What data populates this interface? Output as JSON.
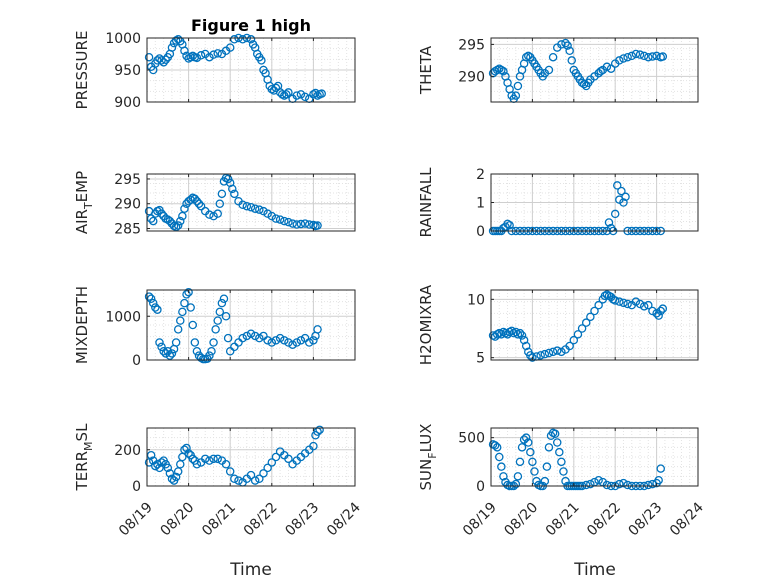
{
  "figure": {
    "title": "Figure 1 high",
    "xlabel": "Time"
  },
  "colors": {
    "marker": "#0072BD",
    "axis": "#262626",
    "grid": "#cfcfcf"
  },
  "chart_data": [
    {
      "type": "scatter",
      "ylabel": "PRESSURE",
      "ylabel_sub": "",
      "ylabel_after": "",
      "ylim": [
        900,
        1000
      ],
      "yticks": [
        900,
        950,
        1000
      ],
      "xlim": [
        0,
        5
      ],
      "x": [
        0.05,
        0.1,
        0.15,
        0.2,
        0.25,
        0.3,
        0.35,
        0.4,
        0.45,
        0.5,
        0.55,
        0.6,
        0.65,
        0.7,
        0.75,
        0.8,
        0.85,
        0.9,
        0.95,
        1.0,
        1.05,
        1.1,
        1.15,
        1.2,
        1.3,
        1.4,
        1.5,
        1.6,
        1.7,
        1.8,
        1.9,
        2.0,
        2.1,
        2.2,
        2.3,
        2.4,
        2.5,
        2.55,
        2.6,
        2.65,
        2.7,
        2.75,
        2.8,
        2.85,
        2.9,
        2.95,
        3.0,
        3.05,
        3.1,
        3.15,
        3.2,
        3.25,
        3.3,
        3.35,
        3.4,
        3.5,
        3.6,
        3.7,
        3.8,
        3.9,
        4.0,
        4.05,
        4.1,
        4.15,
        4.2
      ],
      "y": [
        970,
        955,
        950,
        960,
        965,
        968,
        965,
        962,
        966,
        970,
        975,
        985,
        992,
        996,
        998,
        995,
        990,
        980,
        972,
        968,
        970,
        972,
        970,
        969,
        973,
        975,
        970,
        974,
        976,
        975,
        980,
        985,
        998,
        1000,
        998,
        1000,
        998,
        990,
        985,
        975,
        970,
        965,
        950,
        945,
        935,
        925,
        920,
        918,
        922,
        925,
        915,
        912,
        910,
        912,
        915,
        905,
        910,
        912,
        908,
        905,
        912,
        914,
        910,
        912,
        913
      ],
      "grid": true
    },
    {
      "type": "scatter",
      "ylabel": "THETA",
      "ylabel_sub": "",
      "ylabel_after": "",
      "ylim": [
        286,
        296
      ],
      "yticks": [
        290,
        295
      ],
      "xlim": [
        0,
        5
      ],
      "x": [
        0.05,
        0.1,
        0.15,
        0.2,
        0.25,
        0.3,
        0.35,
        0.4,
        0.45,
        0.5,
        0.55,
        0.6,
        0.65,
        0.7,
        0.75,
        0.8,
        0.85,
        0.9,
        0.95,
        1.0,
        1.05,
        1.1,
        1.15,
        1.2,
        1.25,
        1.3,
        1.4,
        1.5,
        1.6,
        1.7,
        1.8,
        1.85,
        1.9,
        1.95,
        2.0,
        2.05,
        2.1,
        2.15,
        2.2,
        2.25,
        2.3,
        2.35,
        2.4,
        2.5,
        2.6,
        2.65,
        2.7,
        2.8,
        2.9,
        3.0,
        3.1,
        3.2,
        3.3,
        3.4,
        3.5,
        3.6,
        3.7,
        3.8,
        3.9,
        4.0,
        4.1,
        4.15
      ],
      "y": [
        290.5,
        290.8,
        291,
        291.2,
        291,
        290.8,
        290,
        289,
        288,
        287,
        286.5,
        287,
        288.5,
        290,
        291,
        292,
        293,
        293.2,
        293,
        292.5,
        292,
        291.5,
        291,
        290.5,
        290,
        290.5,
        291,
        293,
        294.5,
        295,
        295.2,
        294.8,
        294,
        292.5,
        291,
        290.5,
        290,
        289.5,
        289,
        288.8,
        288.5,
        289,
        289.5,
        290,
        290.5,
        290.8,
        291,
        291.5,
        291.2,
        292,
        292.5,
        292.8,
        293,
        293.2,
        293.5,
        293.4,
        293.2,
        293,
        293.1,
        293.2,
        293,
        293.1
      ],
      "grid": true
    },
    {
      "type": "scatter",
      "ylabel": "AIR",
      "ylabel_sub": "T",
      "ylabel_after": "EMP",
      "ylim": [
        284.5,
        296
      ],
      "yticks": [
        285,
        290,
        295
      ],
      "xlim": [
        0,
        5
      ],
      "x": [
        0.05,
        0.1,
        0.15,
        0.2,
        0.25,
        0.3,
        0.35,
        0.4,
        0.45,
        0.5,
        0.55,
        0.6,
        0.65,
        0.7,
        0.75,
        0.8,
        0.85,
        0.9,
        0.95,
        1.0,
        1.05,
        1.1,
        1.15,
        1.2,
        1.25,
        1.3,
        1.4,
        1.5,
        1.6,
        1.7,
        1.75,
        1.8,
        1.85,
        1.9,
        1.95,
        2.0,
        2.05,
        2.1,
        2.2,
        2.3,
        2.4,
        2.5,
        2.6,
        2.7,
        2.8,
        2.9,
        3.0,
        3.1,
        3.2,
        3.3,
        3.4,
        3.5,
        3.6,
        3.7,
        3.8,
        3.9,
        4.0,
        4.05,
        4.1
      ],
      "y": [
        288.5,
        287,
        286.5,
        288,
        288.5,
        288.7,
        288,
        287.5,
        287,
        286.8,
        286.5,
        286,
        285.5,
        285.3,
        285.6,
        286.5,
        287.5,
        289,
        290,
        290.5,
        290.8,
        291.2,
        291,
        290.5,
        290,
        289.5,
        288.5,
        287.8,
        287.5,
        288,
        290,
        292,
        294.5,
        295.2,
        295,
        294.2,
        293,
        292,
        290.5,
        289.8,
        289.5,
        289.3,
        289,
        288.8,
        288.5,
        288,
        287.5,
        287,
        286.8,
        286.5,
        286.3,
        286,
        285.8,
        285.9,
        286,
        285.8,
        285.7,
        285.5,
        285.6
      ],
      "grid": true
    },
    {
      "type": "scatter",
      "ylabel": "RAINFALL",
      "ylabel_sub": "",
      "ylabel_after": "",
      "ylim": [
        0,
        2
      ],
      "yticks": [
        0,
        1,
        2
      ],
      "xlim": [
        0,
        5
      ],
      "x": [
        0.05,
        0.1,
        0.15,
        0.2,
        0.25,
        0.3,
        0.35,
        0.4,
        0.45,
        0.5,
        0.6,
        0.7,
        0.8,
        0.9,
        1.0,
        1.1,
        1.2,
        1.3,
        1.4,
        1.5,
        1.6,
        1.7,
        1.8,
        1.9,
        2.0,
        2.1,
        2.2,
        2.3,
        2.4,
        2.5,
        2.6,
        2.7,
        2.8,
        2.85,
        2.9,
        2.95,
        3.0,
        3.05,
        3.1,
        3.15,
        3.2,
        3.25,
        3.3,
        3.4,
        3.5,
        3.6,
        3.7,
        3.8,
        3.9,
        4.0,
        4.1
      ],
      "y": [
        0,
        0,
        0,
        0,
        0,
        0.1,
        0.15,
        0.25,
        0.2,
        0,
        0,
        0,
        0,
        0,
        0,
        0,
        0,
        0,
        0,
        0,
        0,
        0,
        0,
        0,
        0,
        0,
        0,
        0,
        0,
        0,
        0,
        0,
        0,
        0.3,
        0.1,
        0,
        0.6,
        1.6,
        1.1,
        1.4,
        1.0,
        1.2,
        0,
        0,
        0,
        0,
        0,
        0,
        0,
        0,
        0
      ],
      "grid": true
    },
    {
      "type": "scatter",
      "ylabel": "MIXDEPTH",
      "ylabel_sub": "",
      "ylabel_after": "",
      "ylim": [
        0,
        1600
      ],
      "yticks": [
        0,
        1000
      ],
      "xlim": [
        0,
        5
      ],
      "x": [
        0.05,
        0.1,
        0.15,
        0.2,
        0.25,
        0.3,
        0.35,
        0.4,
        0.45,
        0.5,
        0.55,
        0.6,
        0.65,
        0.7,
        0.75,
        0.8,
        0.85,
        0.9,
        0.95,
        1.0,
        1.05,
        1.1,
        1.15,
        1.2,
        1.25,
        1.3,
        1.35,
        1.4,
        1.45,
        1.5,
        1.55,
        1.6,
        1.65,
        1.7,
        1.75,
        1.8,
        1.85,
        1.9,
        1.95,
        2.0,
        2.1,
        2.2,
        2.3,
        2.4,
        2.5,
        2.6,
        2.7,
        2.8,
        2.9,
        3.0,
        3.1,
        3.2,
        3.3,
        3.4,
        3.5,
        3.6,
        3.7,
        3.8,
        3.9,
        4.0,
        4.05,
        4.1
      ],
      "y": [
        1450,
        1400,
        1300,
        1200,
        1150,
        400,
        300,
        200,
        150,
        200,
        100,
        150,
        250,
        400,
        700,
        900,
        1100,
        1300,
        1500,
        1550,
        1200,
        800,
        400,
        200,
        100,
        50,
        20,
        20,
        30,
        100,
        200,
        400,
        700,
        900,
        1100,
        1300,
        1400,
        1000,
        500,
        200,
        300,
        400,
        500,
        550,
        600,
        550,
        500,
        550,
        450,
        400,
        450,
        500,
        450,
        400,
        350,
        400,
        450,
        500,
        400,
        450,
        550,
        700
      ],
      "grid": true
    },
    {
      "type": "scatter",
      "ylabel": "H2OMIXRA",
      "ylabel_sub": "",
      "ylabel_after": "",
      "ylim": [
        4.8,
        10.8
      ],
      "yticks": [
        5,
        10
      ],
      "xlim": [
        0,
        5
      ],
      "x": [
        0.05,
        0.1,
        0.15,
        0.2,
        0.25,
        0.3,
        0.35,
        0.4,
        0.45,
        0.5,
        0.55,
        0.6,
        0.65,
        0.7,
        0.75,
        0.8,
        0.85,
        0.9,
        0.95,
        1.0,
        1.1,
        1.2,
        1.3,
        1.4,
        1.5,
        1.6,
        1.7,
        1.8,
        1.9,
        2.0,
        2.1,
        2.2,
        2.3,
        2.4,
        2.5,
        2.6,
        2.7,
        2.75,
        2.8,
        2.85,
        2.9,
        2.95,
        3.0,
        3.1,
        3.2,
        3.3,
        3.4,
        3.5,
        3.6,
        3.7,
        3.8,
        3.9,
        4.0,
        4.05,
        4.1,
        4.15
      ],
      "y": [
        6.9,
        6.8,
        7.0,
        7.1,
        7.0,
        7.2,
        7.1,
        7.0,
        7.2,
        7.3,
        7.1,
        7.2,
        7.0,
        7.1,
        6.9,
        6.5,
        6.0,
        5.5,
        5.2,
        5.0,
        5.1,
        5.2,
        5.3,
        5.4,
        5.5,
        5.6,
        5.5,
        5.7,
        6.0,
        6.5,
        7.0,
        7.5,
        8.0,
        8.5,
        9.0,
        9.5,
        10.0,
        10.3,
        10.4,
        10.3,
        10.2,
        10.0,
        9.9,
        9.8,
        9.7,
        9.6,
        9.5,
        9.8,
        9.6,
        9.4,
        9.5,
        9.0,
        8.8,
        8.6,
        9.0,
        9.2
      ],
      "grid": true
    },
    {
      "type": "scatter",
      "ylabel": "TERR",
      "ylabel_sub": "M",
      "ylabel_after": "SL",
      "ylim": [
        0,
        320
      ],
      "yticks": [
        0,
        200
      ],
      "xlim": [
        0,
        5
      ],
      "x": [
        0.05,
        0.1,
        0.15,
        0.2,
        0.25,
        0.3,
        0.35,
        0.4,
        0.45,
        0.5,
        0.55,
        0.6,
        0.65,
        0.7,
        0.75,
        0.8,
        0.85,
        0.9,
        0.95,
        1.0,
        1.05,
        1.1,
        1.15,
        1.2,
        1.3,
        1.4,
        1.5,
        1.6,
        1.7,
        1.8,
        1.9,
        2.0,
        2.1,
        2.2,
        2.3,
        2.4,
        2.5,
        2.6,
        2.7,
        2.8,
        2.9,
        3.0,
        3.1,
        3.2,
        3.3,
        3.4,
        3.5,
        3.6,
        3.7,
        3.8,
        3.9,
        4.0,
        4.05,
        4.1,
        4.15
      ],
      "y": [
        130,
        170,
        140,
        110,
        120,
        100,
        130,
        140,
        120,
        100,
        70,
        40,
        30,
        50,
        80,
        120,
        160,
        200,
        210,
        180,
        170,
        150,
        140,
        120,
        130,
        150,
        140,
        150,
        150,
        140,
        120,
        80,
        40,
        30,
        20,
        40,
        60,
        30,
        40,
        70,
        100,
        130,
        160,
        190,
        170,
        150,
        120,
        140,
        160,
        180,
        200,
        220,
        280,
        300,
        310
      ],
      "grid": true
    },
    {
      "type": "scatter",
      "ylabel": "SUN",
      "ylabel_sub": "F",
      "ylabel_after": "LUX",
      "ylim": [
        0,
        600
      ],
      "yticks": [
        0,
        500
      ],
      "xlim": [
        0,
        5
      ],
      "x": [
        0.05,
        0.1,
        0.15,
        0.2,
        0.25,
        0.3,
        0.35,
        0.4,
        0.45,
        0.5,
        0.55,
        0.6,
        0.65,
        0.7,
        0.75,
        0.8,
        0.85,
        0.9,
        0.95,
        1.0,
        1.05,
        1.1,
        1.15,
        1.2,
        1.25,
        1.3,
        1.35,
        1.4,
        1.45,
        1.5,
        1.55,
        1.6,
        1.65,
        1.7,
        1.75,
        1.8,
        1.85,
        1.9,
        1.95,
        2.0,
        2.05,
        2.1,
        2.15,
        2.2,
        2.3,
        2.4,
        2.5,
        2.6,
        2.7,
        2.8,
        2.9,
        3.0,
        3.1,
        3.2,
        3.3,
        3.4,
        3.5,
        3.6,
        3.7,
        3.8,
        3.9,
        4.0,
        4.05,
        4.1
      ],
      "y": [
        430,
        420,
        400,
        300,
        200,
        100,
        40,
        10,
        0,
        0,
        0,
        20,
        100,
        250,
        400,
        480,
        500,
        450,
        350,
        250,
        150,
        50,
        10,
        0,
        0,
        50,
        200,
        400,
        520,
        550,
        540,
        450,
        350,
        250,
        150,
        50,
        0,
        0,
        0,
        0,
        0,
        0,
        0,
        0,
        10,
        20,
        40,
        60,
        40,
        10,
        0,
        0,
        20,
        30,
        10,
        0,
        0,
        0,
        0,
        10,
        20,
        30,
        60,
        180
      ],
      "grid": true
    }
  ],
  "x_ticklabels": [
    "08/19",
    "08/20",
    "08/21",
    "08/22",
    "08/23",
    "08/24"
  ]
}
